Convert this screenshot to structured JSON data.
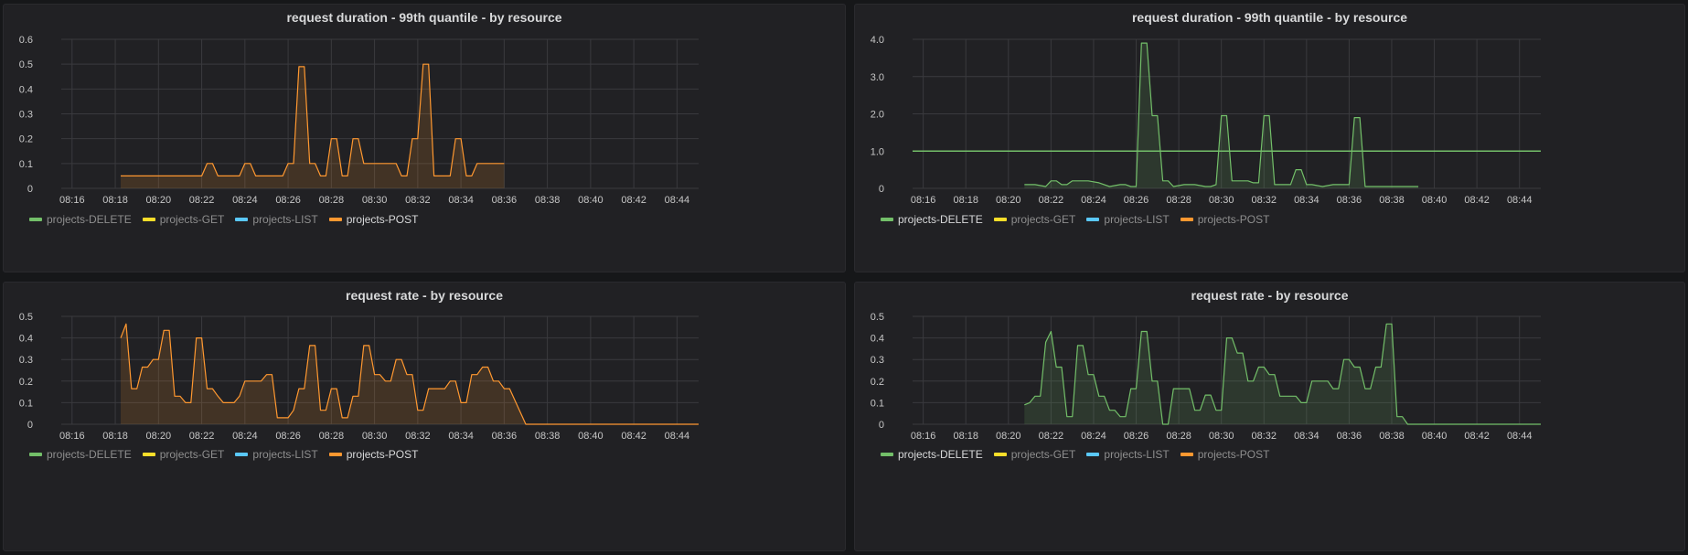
{
  "colors": {
    "projects-DELETE": "#73bf69",
    "projects-GET": "#fade2a",
    "projects-LIST": "#5ac8fa",
    "projects-POST": "#ff9830"
  },
  "chart_data": [
    {
      "type": "area",
      "title": "request duration - 99th quantile - by resource",
      "xlabel": "",
      "ylabel": "",
      "x_ticks": [
        "08:16",
        "08:18",
        "08:20",
        "08:22",
        "08:24",
        "08:26",
        "08:28",
        "08:30",
        "08:32",
        "08:34",
        "08:36",
        "08:38",
        "08:40",
        "08:42",
        "08:44"
      ],
      "y_ticks": [
        "0",
        "0.1",
        "0.2",
        "0.3",
        "0.4",
        "0.5",
        "0.6"
      ],
      "xlim": [
        "08:15:30",
        "08:45:00"
      ],
      "ylim": [
        0,
        0.6
      ],
      "grid": true,
      "legend_position": "bottom-left",
      "legend": [
        "projects-DELETE",
        "projects-GET",
        "projects-LIST",
        "projects-POST"
      ],
      "active_series": "projects-POST",
      "series": [
        {
          "name": "projects-POST",
          "x": [
            "08:18:15",
            "08:18:45",
            "08:19:15",
            "08:19:45",
            "08:20:15",
            "08:20:45",
            "08:21:15",
            "08:21:45",
            "08:22:00",
            "08:22:15",
            "08:22:30",
            "08:22:45",
            "08:23:15",
            "08:23:45",
            "08:24:00",
            "08:24:15",
            "08:24:30",
            "08:24:45",
            "08:25:15",
            "08:25:45",
            "08:26:00",
            "08:26:15",
            "08:26:30",
            "08:26:45",
            "08:27:00",
            "08:27:15",
            "08:27:30",
            "08:27:45",
            "08:28:00",
            "08:28:15",
            "08:28:30",
            "08:28:45",
            "08:29:00",
            "08:29:15",
            "08:29:30",
            "08:29:45",
            "08:30:15",
            "08:30:45",
            "08:31:00",
            "08:31:15",
            "08:31:30",
            "08:31:45",
            "08:32:00",
            "08:32:15",
            "08:32:30",
            "08:32:45",
            "08:33:15",
            "08:33:30",
            "08:33:45",
            "08:34:00",
            "08:34:15",
            "08:34:30",
            "08:34:45",
            "08:35:15",
            "08:35:45",
            "08:36:00"
          ],
          "values": [
            0.05,
            0.05,
            0.05,
            0.05,
            0.05,
            0.05,
            0.05,
            0.05,
            0.05,
            0.1,
            0.1,
            0.05,
            0.05,
            0.05,
            0.1,
            0.1,
            0.05,
            0.05,
            0.05,
            0.05,
            0.1,
            0.1,
            0.49,
            0.49,
            0.1,
            0.1,
            0.05,
            0.05,
            0.2,
            0.2,
            0.05,
            0.05,
            0.2,
            0.2,
            0.1,
            0.1,
            0.1,
            0.1,
            0.1,
            0.05,
            0.05,
            0.2,
            0.2,
            0.5,
            0.5,
            0.05,
            0.05,
            0.05,
            0.2,
            0.2,
            0.05,
            0.05,
            0.1,
            0.1,
            0.1,
            0.1
          ]
        }
      ]
    },
    {
      "type": "area",
      "title": "request duration - 99th quantile - by resource",
      "xlabel": "",
      "ylabel": "",
      "x_ticks": [
        "08:16",
        "08:18",
        "08:20",
        "08:22",
        "08:24",
        "08:26",
        "08:28",
        "08:30",
        "08:32",
        "08:34",
        "08:36",
        "08:38",
        "08:40",
        "08:42",
        "08:44"
      ],
      "y_ticks": [
        "0",
        "1.0",
        "2.0",
        "3.0",
        "4.0"
      ],
      "xlim": [
        "08:15:30",
        "08:45:00"
      ],
      "ylim": [
        0,
        4.0
      ],
      "grid": true,
      "legend_position": "bottom-left",
      "legend": [
        "projects-DELETE",
        "projects-GET",
        "projects-LIST",
        "projects-POST"
      ],
      "active_series": "projects-DELETE",
      "threshold": 1.0,
      "series": [
        {
          "name": "projects-DELETE",
          "x": [
            "08:20:45",
            "08:21:15",
            "08:21:45",
            "08:22:00",
            "08:22:15",
            "08:22:30",
            "08:22:45",
            "08:23:00",
            "08:23:15",
            "08:23:45",
            "08:24:15",
            "08:24:45",
            "08:25:15",
            "08:25:30",
            "08:25:45",
            "08:26:00",
            "08:26:15",
            "08:26:30",
            "08:26:45",
            "08:27:00",
            "08:27:15",
            "08:27:30",
            "08:27:45",
            "08:28:15",
            "08:28:45",
            "08:29:15",
            "08:29:30",
            "08:29:45",
            "08:30:00",
            "08:30:15",
            "08:30:30",
            "08:30:45",
            "08:31:15",
            "08:31:30",
            "08:31:45",
            "08:32:00",
            "08:32:15",
            "08:32:30",
            "08:32:45",
            "08:33:15",
            "08:33:30",
            "08:33:45",
            "08:34:00",
            "08:34:15",
            "08:34:45",
            "08:35:15",
            "08:35:45",
            "08:36:00",
            "08:36:15",
            "08:36:30",
            "08:36:45",
            "08:37:15",
            "08:37:45",
            "08:38:15",
            "08:38:45",
            "08:39:15"
          ],
          "values": [
            0.1,
            0.1,
            0.05,
            0.2,
            0.2,
            0.1,
            0.1,
            0.2,
            0.2,
            0.2,
            0.15,
            0.05,
            0.1,
            0.1,
            0.05,
            0.05,
            3.9,
            3.9,
            1.95,
            1.95,
            0.2,
            0.2,
            0.05,
            0.1,
            0.1,
            0.05,
            0.05,
            0.1,
            1.95,
            1.95,
            0.2,
            0.2,
            0.2,
            0.15,
            0.15,
            1.95,
            1.95,
            0.1,
            0.1,
            0.1,
            0.5,
            0.5,
            0.1,
            0.1,
            0.05,
            0.1,
            0.1,
            0.1,
            1.9,
            1.9,
            0.05,
            0.05,
            0.05,
            0.05,
            0.05,
            0.05
          ]
        }
      ]
    },
    {
      "type": "area",
      "title": "request rate - by resource",
      "xlabel": "",
      "ylabel": "",
      "x_ticks": [
        "08:16",
        "08:18",
        "08:20",
        "08:22",
        "08:24",
        "08:26",
        "08:28",
        "08:30",
        "08:32",
        "08:34",
        "08:36",
        "08:38",
        "08:40",
        "08:42",
        "08:44"
      ],
      "y_ticks": [
        "0",
        "0.1",
        "0.2",
        "0.3",
        "0.4",
        "0.5"
      ],
      "xlim": [
        "08:15:30",
        "08:45:00"
      ],
      "ylim": [
        0,
        0.5
      ],
      "grid": true,
      "legend_position": "bottom-left",
      "legend": [
        "projects-DELETE",
        "projects-GET",
        "projects-LIST",
        "projects-POST"
      ],
      "active_series": "projects-POST",
      "series": [
        {
          "name": "projects-POST",
          "x": [
            "08:18:15",
            "08:18:30",
            "08:18:45",
            "08:19:00",
            "08:19:15",
            "08:19:30",
            "08:19:45",
            "08:20:00",
            "08:20:15",
            "08:20:30",
            "08:20:45",
            "08:21:00",
            "08:21:15",
            "08:21:30",
            "08:21:45",
            "08:22:00",
            "08:22:15",
            "08:22:30",
            "08:22:45",
            "08:23:00",
            "08:23:30",
            "08:23:45",
            "08:24:00",
            "08:24:30",
            "08:24:45",
            "08:25:00",
            "08:25:15",
            "08:25:30",
            "08:26:00",
            "08:26:15",
            "08:26:30",
            "08:26:45",
            "08:27:00",
            "08:27:15",
            "08:27:30",
            "08:27:45",
            "08:28:00",
            "08:28:15",
            "08:28:30",
            "08:28:45",
            "08:29:00",
            "08:29:15",
            "08:29:30",
            "08:29:45",
            "08:30:00",
            "08:30:15",
            "08:30:30",
            "08:30:45",
            "08:31:00",
            "08:31:15",
            "08:31:30",
            "08:31:45",
            "08:32:00",
            "08:32:15",
            "08:32:30",
            "08:33:00",
            "08:33:15",
            "08:33:30",
            "08:33:45",
            "08:34:00",
            "08:34:15",
            "08:34:30",
            "08:34:45",
            "08:35:00",
            "08:35:15",
            "08:35:30",
            "08:35:45",
            "08:36:00",
            "08:36:15",
            "08:37:00",
            "08:38:00",
            "08:40:00",
            "08:42:00",
            "08:44:00",
            "08:45:00"
          ],
          "values": [
            0.4,
            0.465,
            0.165,
            0.165,
            0.265,
            0.265,
            0.3,
            0.3,
            0.435,
            0.435,
            0.13,
            0.13,
            0.1,
            0.1,
            0.4,
            0.4,
            0.165,
            0.165,
            0.13,
            0.1,
            0.1,
            0.13,
            0.2,
            0.2,
            0.2,
            0.23,
            0.23,
            0.03,
            0.03,
            0.065,
            0.165,
            0.165,
            0.365,
            0.365,
            0.065,
            0.065,
            0.165,
            0.165,
            0.03,
            0.03,
            0.13,
            0.13,
            0.365,
            0.365,
            0.23,
            0.23,
            0.2,
            0.2,
            0.3,
            0.3,
            0.23,
            0.23,
            0.065,
            0.065,
            0.165,
            0.165,
            0.165,
            0.2,
            0.2,
            0.1,
            0.1,
            0.23,
            0.23,
            0.265,
            0.265,
            0.2,
            0.2,
            0.165,
            0.165,
            0.0,
            0.0,
            0.0,
            0.0,
            0.0,
            0.0
          ]
        }
      ]
    },
    {
      "type": "area",
      "title": "request rate - by resource",
      "xlabel": "",
      "ylabel": "",
      "x_ticks": [
        "08:16",
        "08:18",
        "08:20",
        "08:22",
        "08:24",
        "08:26",
        "08:28",
        "08:30",
        "08:32",
        "08:34",
        "08:36",
        "08:38",
        "08:40",
        "08:42",
        "08:44"
      ],
      "y_ticks": [
        "0",
        "0.1",
        "0.2",
        "0.3",
        "0.4",
        "0.5"
      ],
      "xlim": [
        "08:15:30",
        "08:45:00"
      ],
      "ylim": [
        0,
        0.5
      ],
      "grid": true,
      "legend_position": "bottom-left",
      "legend": [
        "projects-DELETE",
        "projects-GET",
        "projects-LIST",
        "projects-POST"
      ],
      "active_series": "projects-DELETE",
      "series": [
        {
          "name": "projects-DELETE",
          "x": [
            "08:20:45",
            "08:21:00",
            "08:21:15",
            "08:21:30",
            "08:21:45",
            "08:22:00",
            "08:22:15",
            "08:22:30",
            "08:22:45",
            "08:23:00",
            "08:23:15",
            "08:23:30",
            "08:23:45",
            "08:24:00",
            "08:24:15",
            "08:24:30",
            "08:24:45",
            "08:25:00",
            "08:25:15",
            "08:25:30",
            "08:25:45",
            "08:26:00",
            "08:26:15",
            "08:26:30",
            "08:26:45",
            "08:27:00",
            "08:27:15",
            "08:27:30",
            "08:27:45",
            "08:28:00",
            "08:28:15",
            "08:28:30",
            "08:28:45",
            "08:29:00",
            "08:29:15",
            "08:29:30",
            "08:29:45",
            "08:30:00",
            "08:30:15",
            "08:30:30",
            "08:30:45",
            "08:31:00",
            "08:31:15",
            "08:31:30",
            "08:31:45",
            "08:32:00",
            "08:32:15",
            "08:32:30",
            "08:32:45",
            "08:33:00",
            "08:33:15",
            "08:33:30",
            "08:33:45",
            "08:34:00",
            "08:34:15",
            "08:34:30",
            "08:34:45",
            "08:35:00",
            "08:35:15",
            "08:35:30",
            "08:35:45",
            "08:36:00",
            "08:36:15",
            "08:36:30",
            "08:36:45",
            "08:37:00",
            "08:37:15",
            "08:37:30",
            "08:37:45",
            "08:38:00",
            "08:38:15",
            "08:38:30",
            "08:38:45",
            "08:39:00",
            "08:40:00",
            "08:42:00",
            "08:44:00",
            "08:45:00"
          ],
          "values": [
            0.09,
            0.1,
            0.13,
            0.13,
            0.38,
            0.43,
            0.265,
            0.265,
            0.035,
            0.035,
            0.365,
            0.365,
            0.23,
            0.23,
            0.13,
            0.13,
            0.065,
            0.065,
            0.035,
            0.035,
            0.165,
            0.165,
            0.43,
            0.43,
            0.2,
            0.2,
            0.0,
            0.0,
            0.165,
            0.165,
            0.165,
            0.165,
            0.065,
            0.065,
            0.135,
            0.135,
            0.065,
            0.065,
            0.4,
            0.4,
            0.33,
            0.33,
            0.2,
            0.2,
            0.265,
            0.265,
            0.23,
            0.23,
            0.13,
            0.13,
            0.13,
            0.13,
            0.1,
            0.1,
            0.2,
            0.2,
            0.2,
            0.2,
            0.165,
            0.165,
            0.3,
            0.3,
            0.265,
            0.265,
            0.165,
            0.165,
            0.265,
            0.265,
            0.465,
            0.465,
            0.035,
            0.035,
            0.0,
            0.0,
            0.0,
            0.0,
            0.0,
            0.0
          ]
        }
      ]
    }
  ]
}
